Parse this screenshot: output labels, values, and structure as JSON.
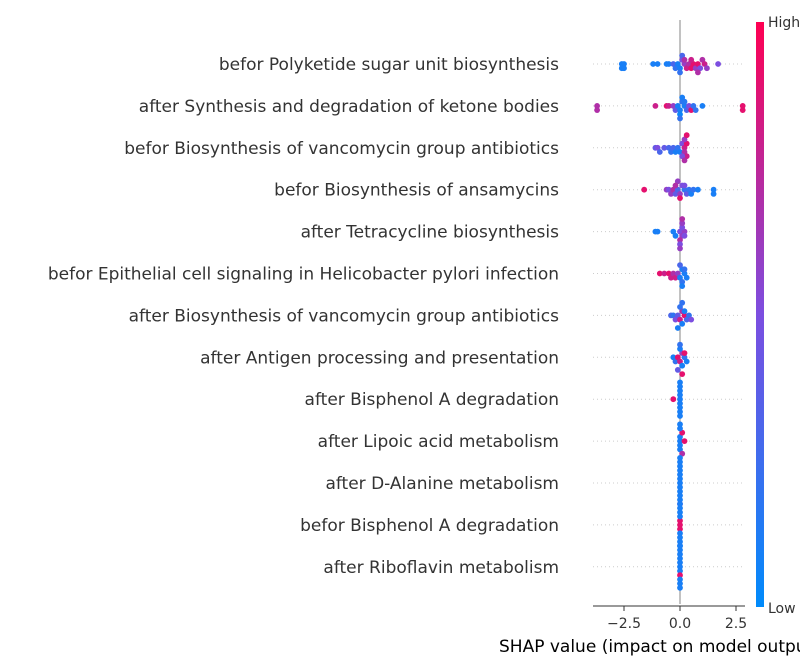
{
  "chart_data": {
    "type": "scatter",
    "subtype": "shap-beeswarm",
    "xlabel": "SHAP value (impact on model output)",
    "xticks": [
      -2.5,
      0.0,
      2.5
    ],
    "xtick_labels": [
      "−2.5",
      "0.0",
      "2.5"
    ],
    "xlim": [
      -3.9,
      3.0
    ],
    "colorbar": {
      "high_label": "High",
      "low_label": "Low",
      "high_color": "#ff0052",
      "low_color": "#008bfb"
    },
    "grid": false,
    "features": [
      {
        "name": "befor Polyketide sugar unit biosynthesis",
        "points": [
          [
            -2.6,
            0.1
          ],
          [
            -2.6,
            0.1
          ],
          [
            -2.5,
            0.1
          ],
          [
            -2.5,
            0.1
          ],
          [
            -1.2,
            0.1
          ],
          [
            -1.0,
            0.1
          ],
          [
            -0.6,
            0.1
          ],
          [
            -0.5,
            0.1
          ],
          [
            -0.3,
            0.3
          ],
          [
            -0.2,
            0.2
          ],
          [
            -0.1,
            0.1
          ],
          [
            0.0,
            0.1
          ],
          [
            0.1,
            0.5
          ],
          [
            0.2,
            0.6
          ],
          [
            0.3,
            0.8
          ],
          [
            0.4,
            0.7
          ],
          [
            0.5,
            0.9
          ],
          [
            0.6,
            0.9
          ],
          [
            0.7,
            0.6
          ],
          [
            0.8,
            0.9
          ],
          [
            0.9,
            0.5
          ],
          [
            1.0,
            0.7
          ],
          [
            1.1,
            0.8
          ],
          [
            1.2,
            0.6
          ],
          [
            1.7,
            0.5
          ],
          [
            0.0,
            0.2
          ],
          [
            0.1,
            0.3
          ],
          [
            0.2,
            0.7
          ],
          [
            0.5,
            0.8
          ],
          [
            0.8,
            0.7
          ]
        ]
      },
      {
        "name": "after Synthesis and degradation of ketone bodies",
        "points": [
          [
            -3.7,
            0.7
          ],
          [
            -3.7,
            0.7
          ],
          [
            -1.1,
            0.8
          ],
          [
            -0.6,
            0.9
          ],
          [
            -0.5,
            0.8
          ],
          [
            -0.3,
            0.6
          ],
          [
            -0.2,
            0.4
          ],
          [
            -0.1,
            0.1
          ],
          [
            0.0,
            0.1
          ],
          [
            0.1,
            0.2
          ],
          [
            0.2,
            0.1
          ],
          [
            0.3,
            0.3
          ],
          [
            0.4,
            0.5
          ],
          [
            0.5,
            0.9
          ],
          [
            0.6,
            0.2
          ],
          [
            0.7,
            0.2
          ],
          [
            1.0,
            0.1
          ],
          [
            2.8,
            0.9
          ],
          [
            2.8,
            0.9
          ],
          [
            0.0,
            0.05
          ],
          [
            0.1,
            0.1
          ],
          [
            0.0,
            0.2
          ],
          [
            0.2,
            0.15
          ]
        ]
      },
      {
        "name": "befor Biosynthesis of vancomycin group antibiotics",
        "points": [
          [
            -1.1,
            0.4
          ],
          [
            -1.0,
            0.5
          ],
          [
            -0.9,
            0.3
          ],
          [
            -0.7,
            0.4
          ],
          [
            -0.5,
            0.3
          ],
          [
            -0.4,
            0.2
          ],
          [
            -0.3,
            0.3
          ],
          [
            -0.2,
            0.1
          ],
          [
            -0.1,
            0.2
          ],
          [
            0.0,
            0.1
          ],
          [
            0.1,
            0.5
          ],
          [
            0.2,
            0.8
          ],
          [
            0.2,
            0.7
          ],
          [
            0.3,
            0.9
          ],
          [
            0.3,
            0.8
          ],
          [
            0.2,
            0.6
          ],
          [
            0.1,
            0.5
          ],
          [
            0.2,
            0.7
          ],
          [
            0.3,
            0.9
          ]
        ]
      },
      {
        "name": "befor Biosynthesis of ansamycins",
        "points": [
          [
            -1.6,
            0.9
          ],
          [
            -0.6,
            0.6
          ],
          [
            -0.5,
            0.5
          ],
          [
            -0.4,
            0.6
          ],
          [
            -0.3,
            0.7
          ],
          [
            -0.2,
            0.4
          ],
          [
            -0.1,
            0.3
          ],
          [
            0.0,
            0.6
          ],
          [
            0.1,
            0.5
          ],
          [
            0.2,
            0.2
          ],
          [
            0.3,
            0.4
          ],
          [
            0.4,
            0.2
          ],
          [
            0.5,
            0.1
          ],
          [
            0.6,
            0.2
          ],
          [
            0.8,
            0.1
          ],
          [
            1.5,
            0.1
          ],
          [
            1.5,
            0.1
          ],
          [
            0.0,
            0.9
          ],
          [
            -0.1,
            0.6
          ],
          [
            0.2,
            0.5
          ],
          [
            -0.2,
            0.7
          ]
        ]
      },
      {
        "name": "after Tetracycline biosynthesis",
        "points": [
          [
            -1.1,
            0.1
          ],
          [
            -1.0,
            0.1
          ],
          [
            -0.3,
            0.1
          ],
          [
            -0.2,
            0.1
          ],
          [
            0.0,
            0.5
          ],
          [
            0.1,
            0.6
          ],
          [
            0.2,
            0.6
          ],
          [
            0.1,
            0.5
          ],
          [
            0.0,
            0.7
          ],
          [
            0.1,
            0.6
          ],
          [
            0.2,
            0.5
          ],
          [
            0.0,
            0.5
          ],
          [
            0.1,
            0.7
          ],
          [
            0.0,
            0.6
          ]
        ]
      },
      {
        "name": "befor Epithelial cell signaling in Helicobacter pylori infection",
        "points": [
          [
            -0.9,
            0.9
          ],
          [
            -0.7,
            0.8
          ],
          [
            -0.5,
            0.9
          ],
          [
            -0.4,
            0.8
          ],
          [
            -0.3,
            0.7
          ],
          [
            -0.2,
            0.8
          ],
          [
            -0.1,
            0.6
          ],
          [
            0.0,
            0.1
          ],
          [
            0.1,
            0.1
          ],
          [
            0.2,
            0.1
          ],
          [
            0.3,
            0.1
          ],
          [
            0.1,
            0.2
          ],
          [
            0.0,
            0.3
          ],
          [
            0.2,
            0.2
          ],
          [
            0.1,
            0.1
          ]
        ]
      },
      {
        "name": "after Biosynthesis of vancomycin group antibiotics",
        "points": [
          [
            -0.4,
            0.3
          ],
          [
            -0.3,
            0.2
          ],
          [
            -0.2,
            0.5
          ],
          [
            -0.1,
            0.4
          ],
          [
            0.0,
            0.8
          ],
          [
            0.1,
            0.7
          ],
          [
            0.2,
            0.9
          ],
          [
            0.3,
            0.3
          ],
          [
            0.4,
            0.2
          ],
          [
            0.5,
            0.5
          ],
          [
            0.1,
            0.1
          ],
          [
            0.0,
            0.2
          ],
          [
            0.2,
            0.1
          ],
          [
            -0.1,
            0.1
          ],
          [
            0.1,
            0.2
          ]
        ]
      },
      {
        "name": "after Antigen processing and presentation",
        "points": [
          [
            -0.3,
            0.1
          ],
          [
            -0.2,
            0.2
          ],
          [
            -0.1,
            0.9
          ],
          [
            0.0,
            0.8
          ],
          [
            0.1,
            0.6
          ],
          [
            0.2,
            0.2
          ],
          [
            0.3,
            0.1
          ],
          [
            0.1,
            0.1
          ],
          [
            0.0,
            0.1
          ],
          [
            -0.1,
            0.4
          ],
          [
            0.0,
            0.2
          ],
          [
            0.1,
            0.9
          ],
          [
            0.2,
            0.9
          ]
        ]
      },
      {
        "name": "after Bisphenol A degradation",
        "points": [
          [
            -0.3,
            0.9
          ],
          [
            0.0,
            0.1
          ],
          [
            0.0,
            0.1
          ],
          [
            0.0,
            0.1
          ],
          [
            0.0,
            0.1
          ],
          [
            0.0,
            0.1
          ],
          [
            0.0,
            0.1
          ],
          [
            0.0,
            0.1
          ],
          [
            0.0,
            0.1
          ],
          [
            0.0,
            0.1
          ]
        ]
      },
      {
        "name": "after Lipoic acid metabolism",
        "points": [
          [
            0.0,
            0.1
          ],
          [
            0.0,
            0.1
          ],
          [
            0.0,
            0.1
          ],
          [
            0.0,
            0.1
          ],
          [
            0.1,
            0.9
          ],
          [
            0.2,
            0.9
          ],
          [
            0.1,
            0.7
          ],
          [
            0.0,
            0.1
          ],
          [
            0.0,
            0.1
          ],
          [
            0.0,
            0.1
          ]
        ]
      },
      {
        "name": "after D-Alanine metabolism",
        "points": [
          [
            0.0,
            0.1
          ],
          [
            0.0,
            0.1
          ],
          [
            0.0,
            0.1
          ],
          [
            0.0,
            0.1
          ],
          [
            0.0,
            0.1
          ],
          [
            0.0,
            0.1
          ],
          [
            0.0,
            0.1
          ],
          [
            0.0,
            0.1
          ],
          [
            0.0,
            0.1
          ],
          [
            0.0,
            0.6
          ],
          [
            0.0,
            0.1
          ]
        ]
      },
      {
        "name": "befor Bisphenol A degradation",
        "points": [
          [
            0.0,
            0.9
          ],
          [
            0.0,
            0.9
          ],
          [
            0.0,
            0.9
          ],
          [
            0.0,
            0.1
          ],
          [
            0.0,
            0.1
          ],
          [
            0.0,
            0.1
          ],
          [
            0.0,
            0.1
          ],
          [
            0.0,
            0.1
          ],
          [
            0.0,
            0.1
          ],
          [
            0.0,
            0.1
          ],
          [
            0.0,
            0.1
          ]
        ]
      },
      {
        "name": "after Riboflavin metabolism",
        "points": [
          [
            0.0,
            0.1
          ],
          [
            0.0,
            0.1
          ],
          [
            0.0,
            0.1
          ],
          [
            0.0,
            0.9
          ],
          [
            0.0,
            0.1
          ],
          [
            0.0,
            0.1
          ],
          [
            0.0,
            0.1
          ],
          [
            0.0,
            0.1
          ],
          [
            0.0,
            0.1
          ],
          [
            0.0,
            0.1
          ],
          [
            0.0,
            0.1
          ]
        ]
      }
    ]
  }
}
